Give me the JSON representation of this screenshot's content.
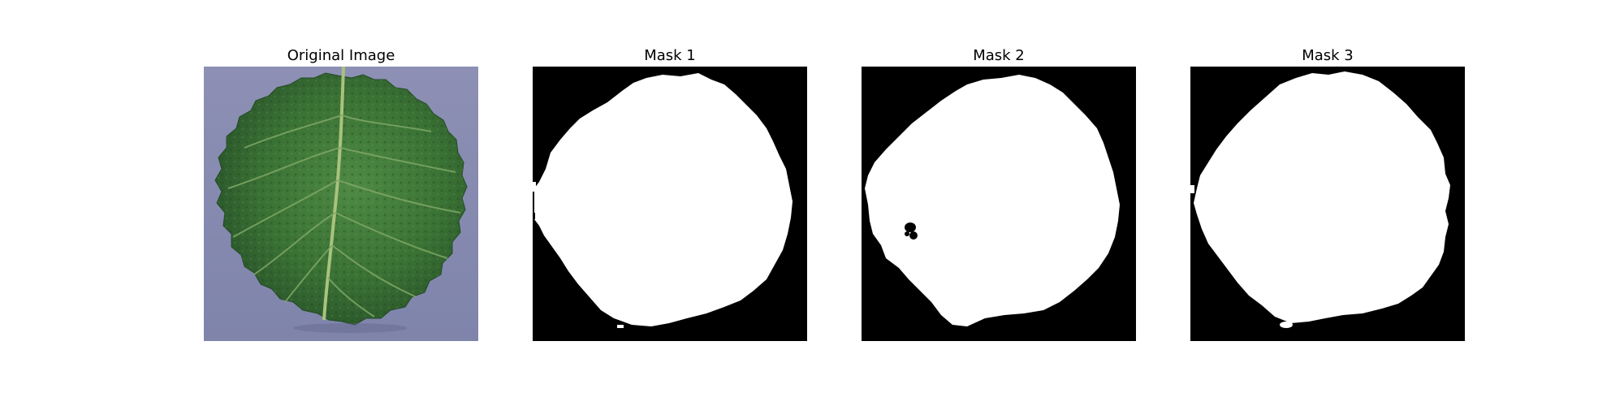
{
  "figure": {
    "panels": [
      {
        "title": "Original Image",
        "content": "leaf-photo"
      },
      {
        "title": "Mask 1",
        "content": "binary-mask"
      },
      {
        "title": "Mask 2",
        "content": "binary-mask"
      },
      {
        "title": "Mask 3",
        "content": "binary-mask"
      }
    ]
  },
  "colors": {
    "background": "#ffffff",
    "mask_background": "#000000",
    "mask_foreground": "#ffffff",
    "photo_backdrop": "#8f93b8",
    "leaf_dark": "#2d5a2a",
    "leaf_mid": "#3f7a38",
    "leaf_light": "#5e9450",
    "vein": "#a8c07a"
  }
}
